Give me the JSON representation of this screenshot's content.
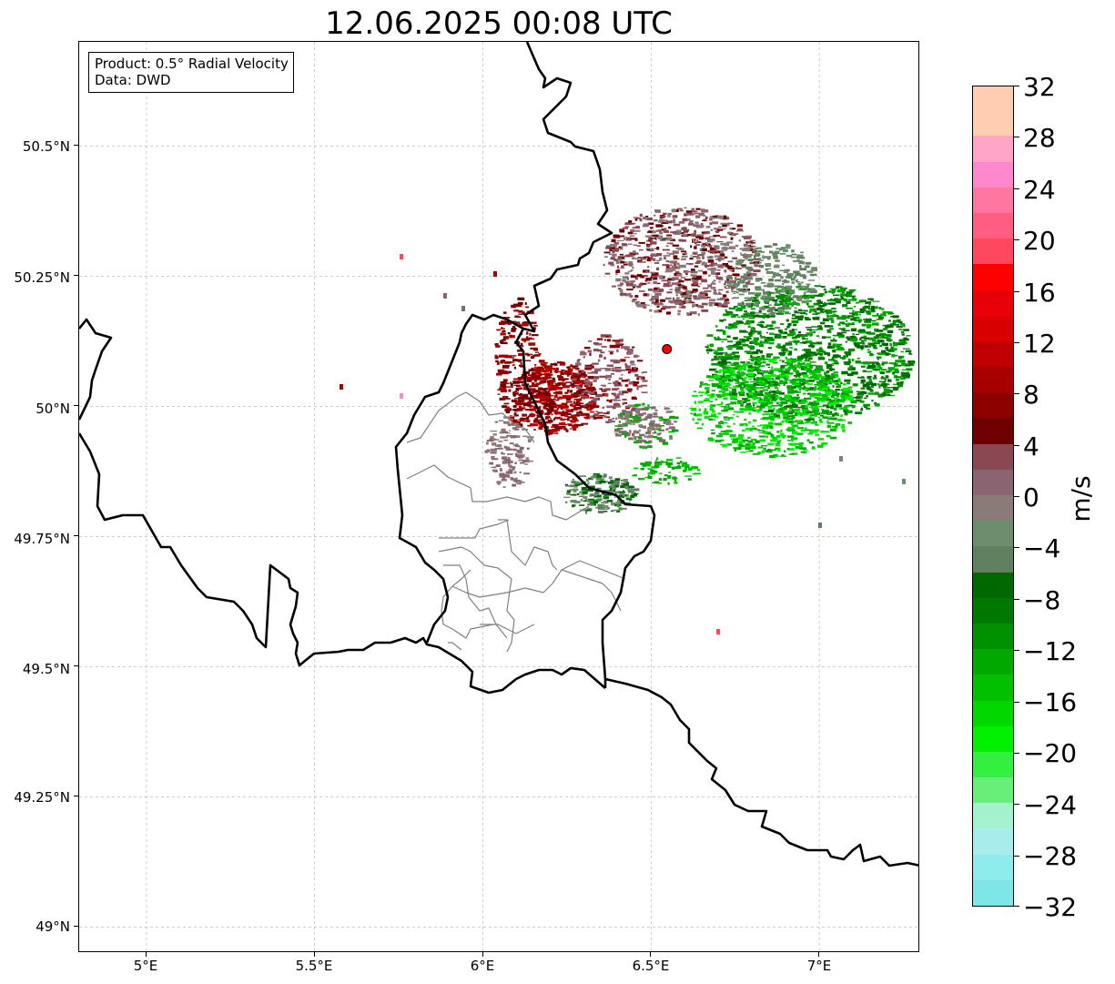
{
  "title": "12.06.2025 00:08 UTC",
  "info_box": {
    "product": "Product: 0.5° Radial Velocity",
    "data": "Data: DWD"
  },
  "map": {
    "lon_range": [
      4.8,
      7.3
    ],
    "lat_range": [
      48.95,
      50.7
    ],
    "lat_ticks": [
      {
        "value": 50.5,
        "label": "50.5°N"
      },
      {
        "value": 50.25,
        "label": "50.25°N"
      },
      {
        "value": 50.0,
        "label": "50°N"
      },
      {
        "value": 49.75,
        "label": "49.75°N"
      },
      {
        "value": 49.5,
        "label": "49.5°N"
      },
      {
        "value": 49.25,
        "label": "49.25°N"
      },
      {
        "value": 49.0,
        "label": "49°N"
      }
    ],
    "lon_ticks": [
      {
        "value": 5.0,
        "label": "5°E"
      },
      {
        "value": 5.5,
        "label": "5.5°E"
      },
      {
        "value": 6.0,
        "label": "6°E"
      },
      {
        "value": 6.5,
        "label": "6.5°E"
      },
      {
        "value": 7.0,
        "label": "7°E"
      }
    ],
    "radar_site": {
      "lon": 6.547,
      "lat": 50.11
    },
    "gridline_color": "#b0b0b0",
    "border_color": "#000000",
    "region_border_color": "#808080"
  },
  "colorbar": {
    "unit": "m/s",
    "vmin": -32,
    "vmax": 32,
    "ticks": [
      {
        "value": 32,
        "label": "32"
      },
      {
        "value": 28,
        "label": "28"
      },
      {
        "value": 24,
        "label": "24"
      },
      {
        "value": 20,
        "label": "20"
      },
      {
        "value": 16,
        "label": "16"
      },
      {
        "value": 12,
        "label": "12"
      },
      {
        "value": 8,
        "label": "8"
      },
      {
        "value": 4,
        "label": "4"
      },
      {
        "value": 0,
        "label": "0"
      },
      {
        "value": -4,
        "label": "−4"
      },
      {
        "value": -8,
        "label": "−8"
      },
      {
        "value": -12,
        "label": "−12"
      },
      {
        "value": -16,
        "label": "−16"
      },
      {
        "value": -20,
        "label": "−20"
      },
      {
        "value": -24,
        "label": "−24"
      },
      {
        "value": -28,
        "label": "−28"
      },
      {
        "value": -32,
        "label": "−32"
      }
    ],
    "colors_bottom_to_top": [
      "#7ee6e6",
      "#8eecec",
      "#a8ecec",
      "#a4f2cc",
      "#66f07a",
      "#33f040",
      "#00f000",
      "#00d800",
      "#00c000",
      "#00a800",
      "#009000",
      "#007800",
      "#006800",
      "#5e805e",
      "#6e8c6e",
      "#8a7a78",
      "#8a6470",
      "#8a4852",
      "#6e0000",
      "#8c0000",
      "#a80000",
      "#c00000",
      "#d80000",
      "#e80008",
      "#ff0000",
      "#ff4860",
      "#ff5e82",
      "#ff76a0",
      "#ff88cc",
      "#ffa6c8",
      "#ffceb0",
      "#ffceb0"
    ]
  }
}
